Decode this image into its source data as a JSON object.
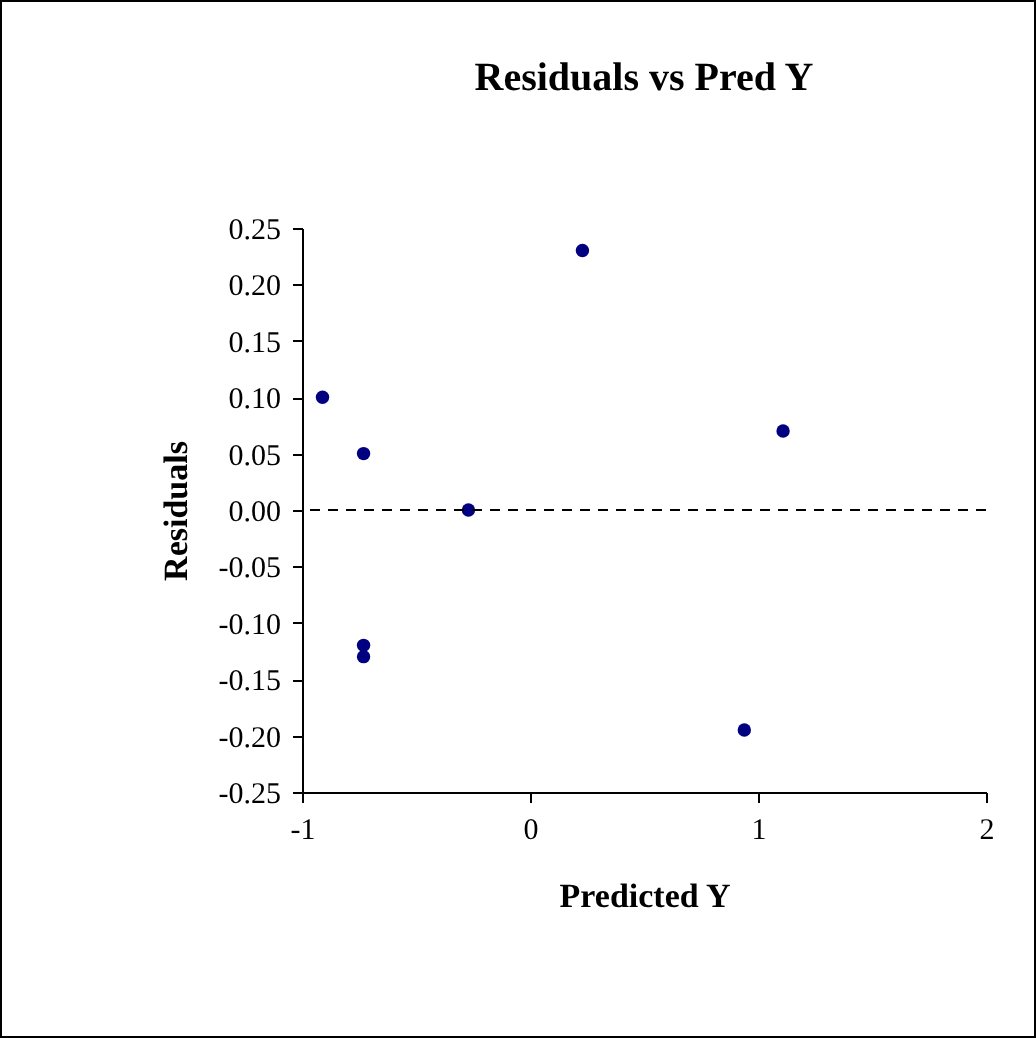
{
  "chart_data": {
    "type": "scatter",
    "title": "Residuals vs Pred Y",
    "xlabel": "Predicted Y",
    "ylabel": "Residuals",
    "x": [
      -0.91,
      -0.73,
      -0.73,
      -0.73,
      -0.27,
      0.23,
      0.94,
      1.11
    ],
    "series": [
      {
        "color": "#000080",
        "values": [
          0.1,
          0.05,
          -0.12,
          -0.13,
          0.0,
          0.23,
          -0.195,
          0.07
        ]
      }
    ],
    "xlim": [
      -1,
      2
    ],
    "xticks": [
      -1,
      0,
      1,
      2
    ],
    "ylim": [
      -0.25,
      0.25
    ],
    "yticks": [
      {
        "value": -0.25,
        "label": "-0.25"
      },
      {
        "value": -0.2,
        "label": "-0.20"
      },
      {
        "value": -0.15,
        "label": "-0.15"
      },
      {
        "value": -0.1,
        "label": "-0.10"
      },
      {
        "value": -0.05,
        "label": "-0.05"
      },
      {
        "value": 0,
        "label": "0.00"
      },
      {
        "value": 0.05,
        "label": "0.05"
      },
      {
        "value": 0.1,
        "label": "0.10"
      },
      {
        "value": 0.15,
        "label": "0.15"
      },
      {
        "value": 0.2,
        "label": "0.20"
      },
      {
        "value": 0.25,
        "label": "0.25"
      }
    ],
    "ref_lines": [
      {
        "axis": "y",
        "value": 0,
        "line_style": "dashed",
        "color": "#000000"
      }
    ],
    "grid": false,
    "marker": "circle"
  }
}
